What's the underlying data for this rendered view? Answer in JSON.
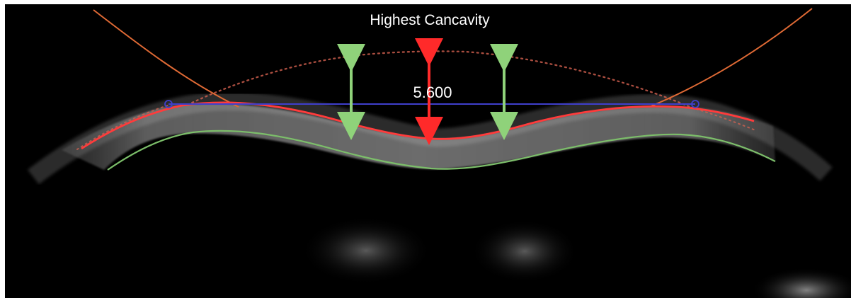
{
  "image": {
    "title": "Highest Cancavity",
    "measurement": "5.600"
  },
  "colors": {
    "background": "#000000",
    "tissue": "#d8d8d8",
    "anterior_fit_red": "#ff3b3b",
    "posterior_green": "#7cbe6a",
    "reference_blue": "#3f3fcc",
    "arc_orange": "#e06a35",
    "center_arrow_red": "#ff2a2a",
    "side_arrow_green": "#8fd27a"
  },
  "icons": {
    "left_marker": "circle-marker",
    "right_marker": "circle-marker"
  }
}
